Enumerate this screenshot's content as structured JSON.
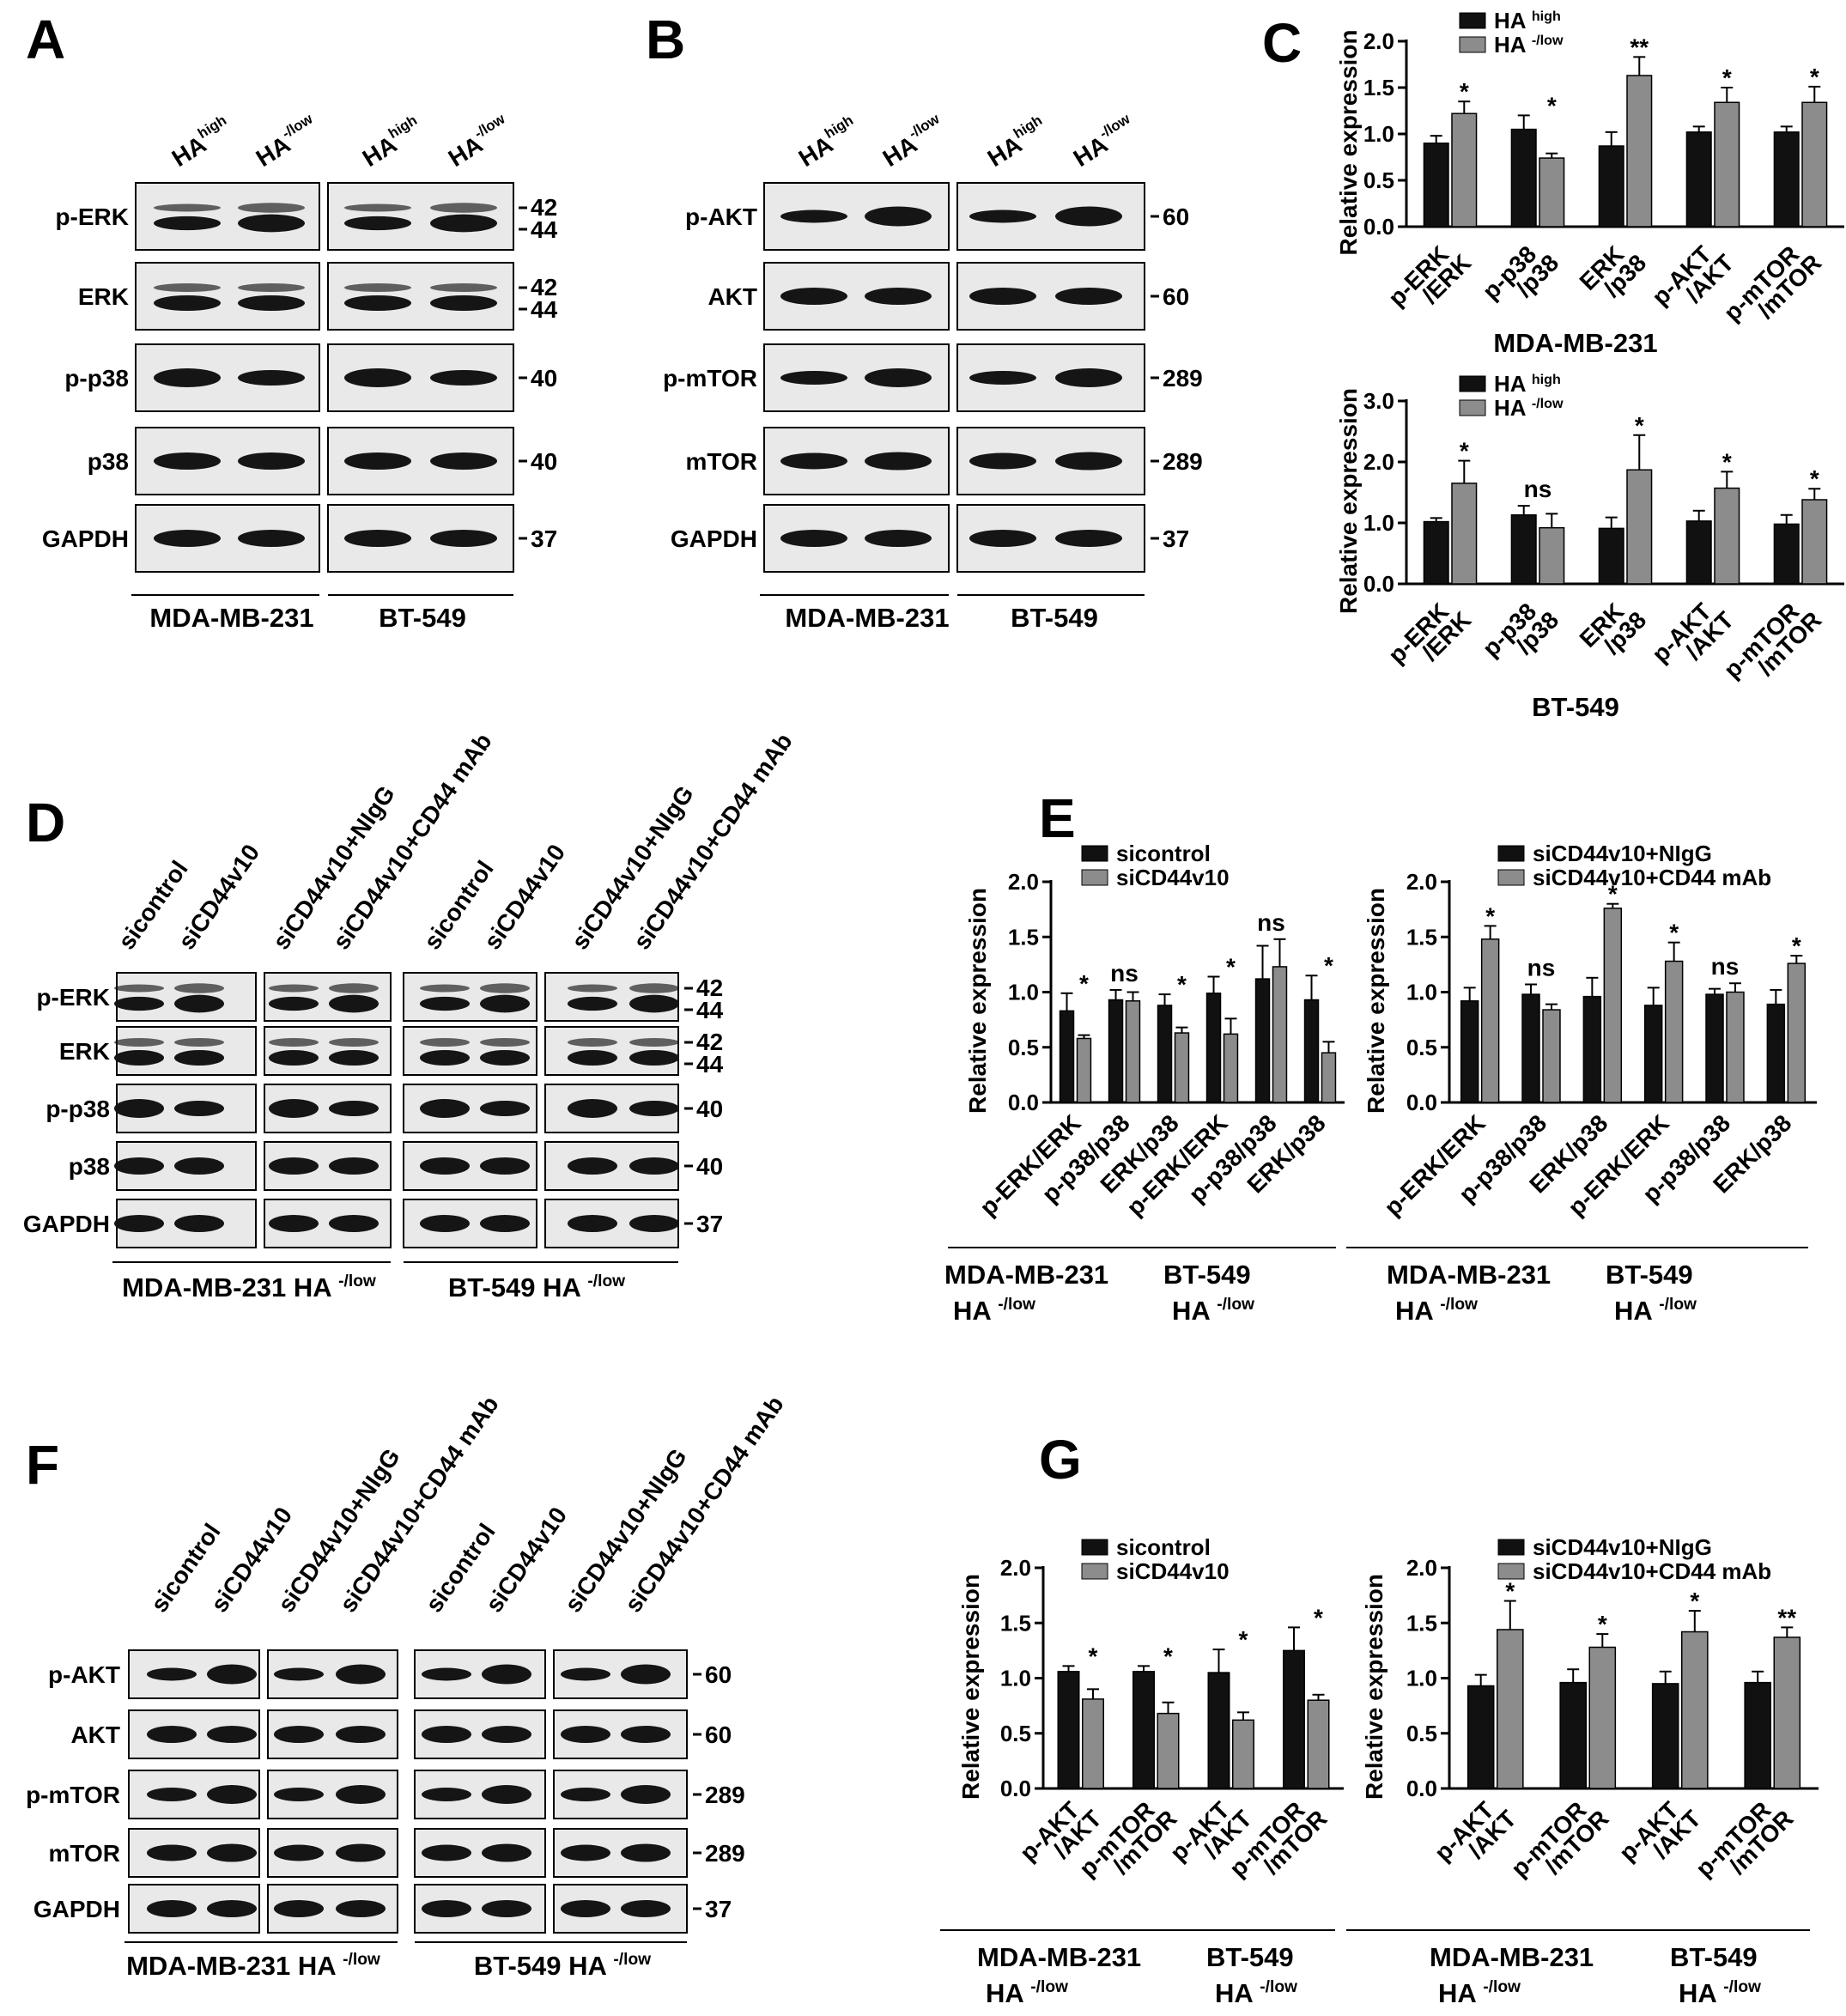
{
  "colors": {
    "black_bar": "#111111",
    "gray_bar": "#8c8c8c",
    "band": "#151515",
    "blot_bg": "#e9e9e9"
  },
  "blots": {
    "A": {
      "label": "A",
      "lanes": [
        "HA high",
        "HA -/low",
        "HA high",
        "HA -/low"
      ],
      "rows": [
        {
          "name": "p-ERK",
          "mw": [
            "42",
            "44"
          ]
        },
        {
          "name": "ERK",
          "mw": [
            "42",
            "44"
          ]
        },
        {
          "name": "p-p38",
          "mw": [
            "40"
          ]
        },
        {
          "name": "p38",
          "mw": [
            "40"
          ]
        },
        {
          "name": "GAPDH",
          "mw": [
            "37"
          ]
        }
      ],
      "groups": [
        "MDA-MB-231",
        "BT-549"
      ]
    },
    "B": {
      "label": "B",
      "lanes": [
        "HA high",
        "HA -/low",
        "HA high",
        "HA -/low"
      ],
      "rows": [
        {
          "name": "p-AKT",
          "mw": [
            "60"
          ]
        },
        {
          "name": "AKT",
          "mw": [
            "60"
          ]
        },
        {
          "name": "p-mTOR",
          "mw": [
            "289"
          ]
        },
        {
          "name": "mTOR",
          "mw": [
            "289"
          ]
        },
        {
          "name": "GAPDH",
          "mw": [
            "37"
          ]
        }
      ],
      "groups": [
        "MDA-MB-231",
        "BT-549"
      ]
    },
    "D": {
      "label": "D",
      "lanes": [
        "sicontrol",
        "siCD44v10",
        "siCD44v10+NIgG",
        "siCD44v10+CD44 mAb",
        "sicontrol",
        "siCD44v10",
        "siCD44v10+NIgG",
        "siCD44v10+CD44 mAb"
      ],
      "rows": [
        {
          "name": "p-ERK",
          "mw": [
            "42",
            "44"
          ]
        },
        {
          "name": "ERK",
          "mw": [
            "42",
            "44"
          ]
        },
        {
          "name": "p-p38",
          "mw": [
            "40"
          ]
        },
        {
          "name": "p38",
          "mw": [
            "40"
          ]
        },
        {
          "name": "GAPDH",
          "mw": [
            "37"
          ]
        }
      ],
      "groups": [
        "MDA-MB-231 HA -/low",
        "BT-549 HA -/low"
      ]
    },
    "F": {
      "label": "F",
      "lanes": [
        "sicontrol",
        "siCD44v10",
        "siCD44v10+NIgG",
        "siCD44v10+CD44 mAb",
        "sicontrol",
        "siCD44v10",
        "siCD44v10+NIgG",
        "siCD44v10+CD44 mAb"
      ],
      "rows": [
        {
          "name": "p-AKT",
          "mw": [
            "60"
          ]
        },
        {
          "name": "AKT",
          "mw": [
            "60"
          ]
        },
        {
          "name": "p-mTOR",
          "mw": [
            "289"
          ]
        },
        {
          "name": "mTOR",
          "mw": [
            "289"
          ]
        },
        {
          "name": "GAPDH",
          "mw": [
            "37"
          ]
        }
      ],
      "groups": [
        "MDA-MB-231 HA -/low",
        "BT-549 HA -/low"
      ]
    }
  },
  "chart_data": [
    {
      "id": "C_MDA",
      "panel": "C",
      "type": "bar",
      "ylabel": "Relative expression",
      "ylim": [
        0,
        2.0
      ],
      "yticks": [
        "0.0",
        "0.5",
        "1.0",
        "1.5",
        "2.0"
      ],
      "categories": [
        "p-ERK /ERK",
        "p-p38 /p38",
        "ERK /p38",
        "p-AKT /AKT",
        "p-mTOR /mTOR"
      ],
      "series": [
        {
          "name": "HA high",
          "values": [
            0.9,
            1.05,
            0.87,
            1.02,
            1.02
          ],
          "errors": [
            0.08,
            0.15,
            0.15,
            0.06,
            0.06
          ]
        },
        {
          "name": "HA -/low",
          "values": [
            1.22,
            0.74,
            1.63,
            1.34,
            1.34
          ],
          "errors": [
            0.13,
            0.05,
            0.2,
            0.16,
            0.17
          ]
        }
      ],
      "significance": [
        "*",
        "*",
        "**",
        "*",
        "*"
      ],
      "xgroups": [
        {
          "label": "MDA-MB-231"
        }
      ]
    },
    {
      "id": "C_BT",
      "panel": "C",
      "type": "bar",
      "ylabel": "Relative expression",
      "ylim": [
        0,
        3.0
      ],
      "yticks": [
        "0.0",
        "1.0",
        "2.0",
        "3.0"
      ],
      "categories": [
        "p-ERK /ERK",
        "p-p38 /p38",
        "ERK /p38",
        "p-AKT /AKT",
        "p-mTOR /mTOR"
      ],
      "series": [
        {
          "name": "HA high",
          "values": [
            1.02,
            1.13,
            0.91,
            1.03,
            0.98
          ],
          "errors": [
            0.06,
            0.15,
            0.18,
            0.17,
            0.15
          ]
        },
        {
          "name": "HA -/low",
          "values": [
            1.65,
            0.92,
            1.87,
            1.57,
            1.38
          ],
          "errors": [
            0.37,
            0.23,
            0.57,
            0.27,
            0.18
          ]
        }
      ],
      "significance": [
        "*",
        "ns",
        "*",
        "*",
        "*"
      ],
      "xgroups": [
        {
          "label": "BT-549"
        }
      ]
    },
    {
      "id": "E_left",
      "panel": "E",
      "type": "bar",
      "ylabel": "Relative expression",
      "ylim": [
        0,
        2.0
      ],
      "yticks": [
        "0.0",
        "0.5",
        "1.0",
        "1.5",
        "2.0"
      ],
      "categories": [
        "p-ERK/ERK",
        "p-p38/p38",
        "ERK/p38",
        "p-ERK/ERK",
        "p-p38/p38",
        "ERK/p38"
      ],
      "series": [
        {
          "name": "sicontrol",
          "values": [
            0.83,
            0.93,
            0.88,
            0.99,
            1.12,
            0.93
          ],
          "errors": [
            0.16,
            0.09,
            0.1,
            0.15,
            0.3,
            0.22
          ]
        },
        {
          "name": "siCD44v10",
          "values": [
            0.58,
            0.92,
            0.63,
            0.62,
            1.23,
            0.45
          ],
          "errors": [
            0.03,
            0.08,
            0.05,
            0.14,
            0.25,
            0.1
          ]
        }
      ],
      "significance": [
        "*",
        "ns",
        "*",
        "*",
        "ns",
        "*"
      ],
      "xgroups": [
        {
          "label": "MDA-MB-231 HA -/low",
          "from": 0,
          "to": 2
        },
        {
          "label": "BT-549 HA -/low",
          "from": 3,
          "to": 5
        }
      ]
    },
    {
      "id": "E_right",
      "panel": "E",
      "type": "bar",
      "ylabel": "Relative expression",
      "ylim": [
        0,
        2.0
      ],
      "yticks": [
        "0.0",
        "0.5",
        "1.0",
        "1.5",
        "2.0"
      ],
      "categories": [
        "p-ERK/ERK",
        "p-p38/p38",
        "ERK/p38",
        "p-ERK/ERK",
        "p-p38/p38",
        "ERK/p38"
      ],
      "series": [
        {
          "name": "siCD44v10+NIgG",
          "values": [
            0.92,
            0.98,
            0.96,
            0.88,
            0.98,
            0.89
          ],
          "errors": [
            0.12,
            0.09,
            0.17,
            0.16,
            0.05,
            0.13
          ]
        },
        {
          "name": "siCD44v10+CD44 mAb",
          "values": [
            1.48,
            0.84,
            1.76,
            1.28,
            1.0,
            1.26
          ],
          "errors": [
            0.12,
            0.05,
            0.04,
            0.17,
            0.08,
            0.07
          ]
        }
      ],
      "significance": [
        "*",
        "ns",
        "*",
        "*",
        "ns",
        "*"
      ],
      "xgroups": [
        {
          "label": "MDA-MB-231 HA -/low",
          "from": 0,
          "to": 2
        },
        {
          "label": "BT-549 HA -/low",
          "from": 3,
          "to": 5
        }
      ]
    },
    {
      "id": "G_left",
      "panel": "G",
      "type": "bar",
      "ylabel": "Relative expression",
      "ylim": [
        0,
        2.0
      ],
      "yticks": [
        "0.0",
        "0.5",
        "1.0",
        "1.5",
        "2.0"
      ],
      "categories": [
        "p-AKT /AKT",
        "p-mTOR /mTOR",
        "p-AKT /AKT",
        "p-mTOR /mTOR"
      ],
      "series": [
        {
          "name": "sicontrol",
          "values": [
            1.06,
            1.06,
            1.05,
            1.25
          ],
          "errors": [
            0.05,
            0.05,
            0.21,
            0.21
          ]
        },
        {
          "name": "siCD44v10",
          "values": [
            0.81,
            0.68,
            0.62,
            0.8
          ],
          "errors": [
            0.09,
            0.1,
            0.07,
            0.05
          ]
        }
      ],
      "significance": [
        "*",
        "*",
        "*",
        "*"
      ],
      "xgroups": [
        {
          "label": "MDA-MB-231 HA -/low",
          "from": 0,
          "to": 1
        },
        {
          "label": "BT-549 HA -/low",
          "from": 2,
          "to": 3
        }
      ]
    },
    {
      "id": "G_right",
      "panel": "G",
      "type": "bar",
      "ylabel": "Relative expression",
      "ylim": [
        0,
        2.0
      ],
      "yticks": [
        "0.0",
        "0.5",
        "1.0",
        "1.5",
        "2.0"
      ],
      "categories": [
        "p-AKT /AKT",
        "p-mTOR /mTOR",
        "p-AKT /AKT",
        "p-mTOR /mTOR"
      ],
      "series": [
        {
          "name": "siCD44v10+NIgG",
          "values": [
            0.93,
            0.96,
            0.95,
            0.96
          ],
          "errors": [
            0.1,
            0.12,
            0.11,
            0.1
          ]
        },
        {
          "name": "siCD44v10+CD44 mAb",
          "values": [
            1.44,
            1.28,
            1.42,
            1.37
          ],
          "errors": [
            0.26,
            0.12,
            0.19,
            0.09
          ]
        }
      ],
      "significance": [
        "*",
        "*",
        "*",
        "**"
      ],
      "xgroups": [
        {
          "label": "MDA-MB-231 HA -/low",
          "from": 0,
          "to": 1
        },
        {
          "label": "BT-549 HA -/low",
          "from": 2,
          "to": 3
        }
      ]
    }
  ]
}
